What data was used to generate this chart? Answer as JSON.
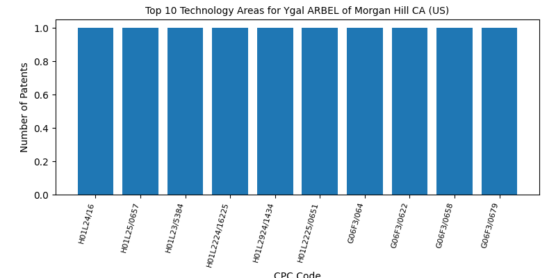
{
  "title": "Top 10 Technology Areas for Ygal ARBEL of Morgan Hill CA (US)",
  "categories": [
    "H01L24/16",
    "H01L25/0657",
    "H01L23/5384",
    "H01L2224/16225",
    "H01L2924/1434",
    "H01L2225/0651",
    "G06F3/064",
    "G06F3/0622",
    "G06F3/0658",
    "G06F3/0679"
  ],
  "values": [
    1,
    1,
    1,
    1,
    1,
    1,
    1,
    1,
    1,
    1
  ],
  "bar_color": "#1f77b4",
  "xlabel": "CPC Code",
  "ylabel": "Number of Patents",
  "ylim": [
    0,
    1.05
  ],
  "yticks": [
    0.0,
    0.2,
    0.4,
    0.6,
    0.8,
    1.0
  ],
  "figsize": [
    8.0,
    4.0
  ],
  "dpi": 100,
  "bar_width": 0.8,
  "rotation": 75,
  "title_fontsize": 10,
  "axis_fontsize": 10,
  "tick_fontsize": 8
}
